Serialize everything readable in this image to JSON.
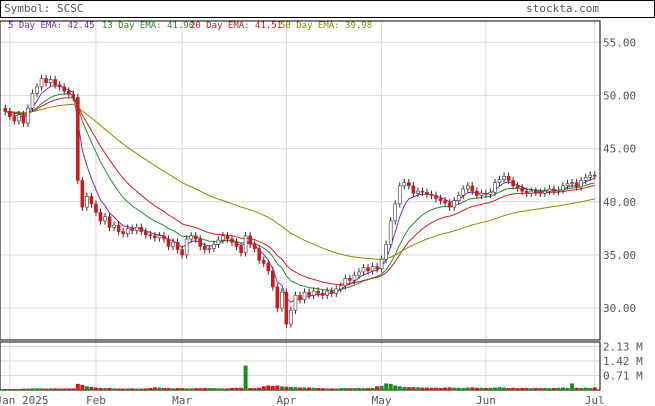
{
  "header": {
    "symbol_label": "Symbol: SCSC",
    "site": "stockta.com"
  },
  "legend": [
    {
      "label": "5 Day EMA: 42.45",
      "color": "#7b2fbe"
    },
    {
      "label": "13 Day EMA: 41.90",
      "color": "#2e8b2e"
    },
    {
      "label": "20 Day EMA: 41.51",
      "color": "#cc2222"
    },
    {
      "label": "50 Day EMA: 39.98",
      "color": "#8b8b00"
    }
  ],
  "colors": {
    "up": "#1f8a1f",
    "down": "#cc1a1a",
    "wick": "#333333",
    "grid": "#d9d9d9"
  },
  "chart_data": {
    "type": "candlestick",
    "ylim": [
      27,
      57
    ],
    "y_ticks": [
      {
        "value": 30,
        "label": "30.00"
      },
      {
        "value": 35,
        "label": "35.00"
      },
      {
        "value": 40,
        "label": "40.00"
      },
      {
        "value": 45,
        "label": "45.00"
      },
      {
        "value": 50,
        "label": "50.00"
      },
      {
        "value": 55,
        "label": "55.00"
      }
    ],
    "x_ticks": [
      {
        "index": 1,
        "label": "Jan 2025"
      },
      {
        "index": 20,
        "label": "Feb"
      },
      {
        "index": 39,
        "label": "Mar"
      },
      {
        "index": 62,
        "label": "Apr"
      },
      {
        "index": 83,
        "label": "May"
      },
      {
        "index": 106,
        "label": "Jun"
      },
      {
        "index": 130,
        "label": "Jul"
      }
    ],
    "close": [
      48.5,
      48.0,
      47.6,
      48.2,
      47.4,
      48.8,
      50.2,
      50.8,
      51.6,
      51.2,
      51.5,
      51.0,
      50.8,
      50.4,
      50.1,
      49.8,
      42.0,
      39.5,
      40.5,
      39.8,
      39.0,
      38.2,
      38.6,
      37.6,
      37.8,
      37.2,
      37.0,
      37.5,
      37.3,
      37.6,
      37.2,
      36.9,
      36.8,
      36.6,
      36.8,
      36.5,
      35.8,
      36.2,
      35.5,
      35.0,
      36.5,
      36.8,
      36.5,
      35.8,
      35.5,
      35.6,
      36.0,
      36.4,
      36.8,
      36.5,
      36.2,
      35.8,
      35.2,
      36.8,
      36.0,
      35.6,
      34.5,
      34.2,
      33.5,
      32.0,
      30.0,
      31.5,
      28.5,
      29.8,
      31.2,
      30.8,
      31.5,
      31.2,
      31.6,
      31.4,
      31.2,
      31.6,
      31.4,
      31.8,
      32.1,
      32.8,
      32.6,
      33.1,
      33.4,
      33.8,
      33.5,
      33.9,
      33.7,
      34.6,
      36.0,
      38.2,
      39.8,
      41.5,
      41.8,
      41.5,
      40.8,
      41.0,
      40.9,
      40.7,
      40.6,
      40.3,
      40.1,
      39.9,
      39.5,
      40.1,
      40.6,
      41.2,
      41.5,
      41.0,
      40.6,
      40.8,
      40.7,
      40.9,
      41.8,
      42.1,
      42.4,
      42.0,
      41.5,
      41.3,
      41.0,
      40.8,
      41.0,
      40.9,
      40.8,
      41.0,
      41.2,
      41.0,
      41.1,
      41.5,
      41.7,
      41.8,
      41.4,
      42.0,
      42.3,
      42.5,
      42.45
    ],
    "volume": [
      0.05,
      0.05,
      0.05,
      0.05,
      0.06,
      0.07,
      0.08,
      0.08,
      0.08,
      0.07,
      0.08,
      0.08,
      0.07,
      0.07,
      0.08,
      0.08,
      0.3,
      0.25,
      0.18,
      0.15,
      0.12,
      0.1,
      0.09,
      0.1,
      0.08,
      0.07,
      0.07,
      0.08,
      0.08,
      0.07,
      0.07,
      0.08,
      0.1,
      0.13,
      0.12,
      0.1,
      0.1,
      0.08,
      0.1,
      0.09,
      0.08,
      0.08,
      0.09,
      0.09,
      0.1,
      0.1,
      0.09,
      0.08,
      0.08,
      0.08,
      0.1,
      0.11,
      0.11,
      1.2,
      0.1,
      0.09,
      0.11,
      0.18,
      0.22,
      0.2,
      0.22,
      0.18,
      0.16,
      0.15,
      0.14,
      0.12,
      0.12,
      0.12,
      0.11,
      0.1,
      0.09,
      0.08,
      0.08,
      0.07,
      0.09,
      0.1,
      0.09,
      0.09,
      0.1,
      0.09,
      0.09,
      0.1,
      0.18,
      0.2,
      0.32,
      0.3,
      0.22,
      0.18,
      0.15,
      0.14,
      0.14,
      0.13,
      0.12,
      0.12,
      0.11,
      0.11,
      0.1,
      0.12,
      0.13,
      0.11,
      0.11,
      0.1,
      0.12,
      0.13,
      0.11,
      0.11,
      0.1,
      0.11,
      0.12,
      0.14,
      0.12,
      0.1,
      0.11,
      0.09,
      0.1,
      0.1,
      0.09,
      0.1,
      0.09,
      0.1,
      0.09,
      0.1,
      0.11,
      0.12,
      0.1,
      0.32,
      0.11,
      0.1,
      0.12,
      0.1,
      0.13
    ],
    "ema_series": [
      {
        "name": "5 Day EMA",
        "period": 5
      },
      {
        "name": "13 Day EMA",
        "period": 13
      },
      {
        "name": "20 Day EMA",
        "period": 20
      },
      {
        "name": "50 Day EMA",
        "period": 50
      }
    ],
    "volume_ylim": [
      0,
      2.35
    ],
    "volume_ticks": [
      {
        "value": 0.71,
        "label": "0.71 M"
      },
      {
        "value": 1.42,
        "label": "1.42 M"
      },
      {
        "value": 2.13,
        "label": "2.13 M"
      }
    ]
  }
}
